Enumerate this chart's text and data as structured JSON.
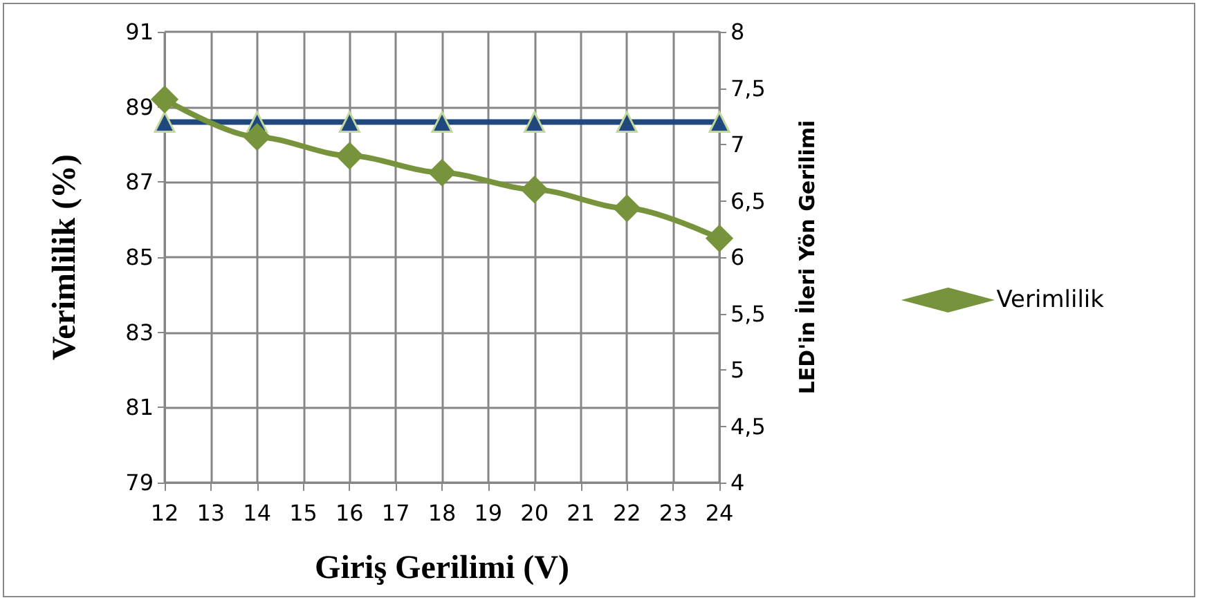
{
  "chart_data": {
    "type": "line",
    "xlabel": "Giriş Gerilimi (V)",
    "ylabel": "Verimlilik (%)",
    "y2label": "LED'in İleri Yön Gerilimi",
    "x": [
      12,
      14,
      16,
      18,
      20,
      22,
      24
    ],
    "series": [
      {
        "name": "Verimlilik",
        "color": "#77933c",
        "marker": "diamond",
        "values": [
          89.2,
          88.2,
          87.7,
          87.25,
          86.8,
          86.3,
          85.5
        ]
      },
      {
        "color": "#1f497d",
        "marker": "triangle",
        "axis": "y2",
        "values": [
          7.2,
          7.2,
          7.2,
          7.2,
          7.2,
          7.2,
          7.2
        ]
      }
    ],
    "xlim": [
      12,
      24
    ],
    "xticks": [
      12,
      13,
      14,
      15,
      16,
      17,
      18,
      19,
      20,
      21,
      22,
      23,
      24
    ],
    "ylim": [
      79,
      91
    ],
    "yticks": [
      79,
      81,
      83,
      85,
      87,
      89,
      91
    ],
    "y2lim": [
      4,
      8
    ],
    "y2ticks": [
      4,
      {
        "value": 4.5,
        "label": "4,5"
      },
      5,
      {
        "value": 5.5,
        "label": "5,5"
      },
      6,
      {
        "value": 6.5,
        "label": "6,5"
      },
      7,
      {
        "value": 7.5,
        "label": "7,5"
      },
      8
    ],
    "grid": true,
    "legend": "right",
    "line_style": "solid"
  }
}
